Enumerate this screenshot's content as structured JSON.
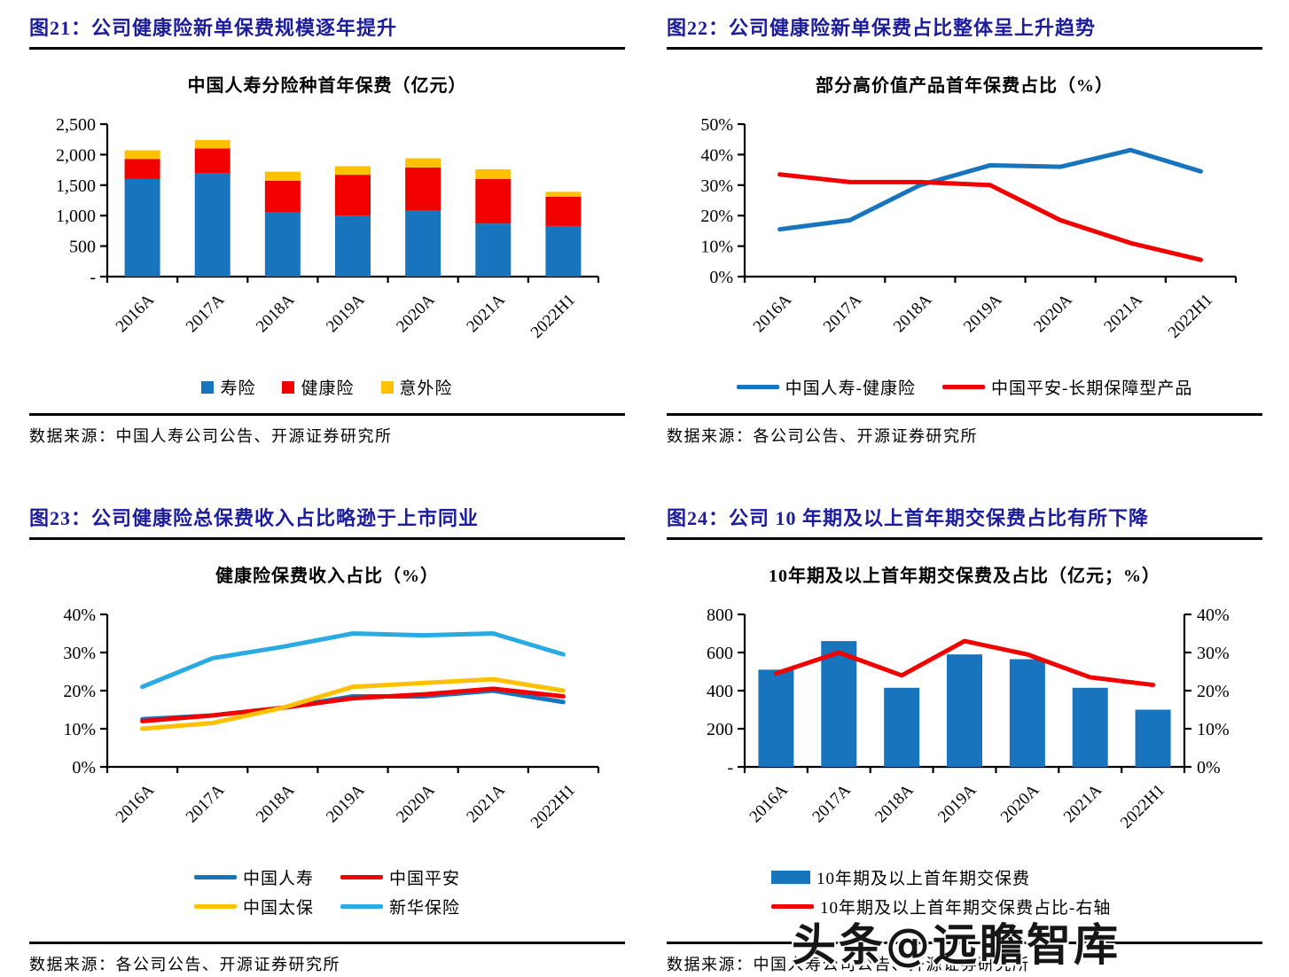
{
  "page": {
    "background": "#ffffff"
  },
  "watermark": {
    "text": "头条@远瞻智库"
  },
  "colors": {
    "title_blue": "#1c1c9c",
    "series_blue": "#1874bc",
    "series_red": "#f20000",
    "series_yellow": "#ffc000",
    "series_lightblue": "#29abe2"
  },
  "panels": [
    {
      "title": "图21：公司健康险新单保费规模逐年提升",
      "source": "数据来源：中国人寿公司公告、开源证券研究所"
    },
    {
      "title": "图22：公司健康险新单保费占比整体呈上升趋势",
      "source": "数据来源：各公司公告、开源证券研究所"
    },
    {
      "title": "图23：公司健康险总保费收入占比略逊于上市同业",
      "source": "数据来源：各公司公告、开源证券研究所"
    },
    {
      "title": "图24：公司 10 年期及以上首年期交保费占比有所下降",
      "source": "数据来源：中国人寿公司公告、开源证券研究所"
    }
  ],
  "chart_data": [
    {
      "type": "bar",
      "stacked": true,
      "title": "中国人寿分险种首年保费（亿元）",
      "categories": [
        "2016A",
        "2017A",
        "2018A",
        "2019A",
        "2020A",
        "2021A",
        "2022H1"
      ],
      "series": [
        {
          "name": "寿险",
          "color": "#1874bc",
          "marker": "square",
          "values": [
            1600,
            1690,
            1050,
            1000,
            1080,
            870,
            830
          ]
        },
        {
          "name": "健康险",
          "color": "#f20000",
          "marker": "square",
          "values": [
            330,
            410,
            520,
            670,
            710,
            730,
            480
          ]
        },
        {
          "name": "意外险",
          "color": "#ffc000",
          "marker": "square",
          "values": [
            140,
            140,
            150,
            140,
            150,
            160,
            80
          ]
        }
      ],
      "ylim": [
        0,
        2500
      ],
      "ytick_values": [
        0,
        500,
        1000,
        1500,
        2000,
        2500
      ],
      "ytick_labels": [
        "-",
        "500",
        "1,000",
        "1,500",
        "2,000",
        "2,500"
      ],
      "grid": false,
      "legend_rows": [
        [
          0,
          1,
          2
        ]
      ],
      "legend_align": "center"
    },
    {
      "type": "line",
      "title": "部分高价值产品首年保费占比（%）",
      "categories": [
        "2016A",
        "2017A",
        "2018A",
        "2019A",
        "2020A",
        "2021A",
        "2022H1"
      ],
      "series": [
        {
          "name": "中国人寿-健康险",
          "color": "#1874bc",
          "marker": "line",
          "values": [
            15.5,
            18.5,
            30,
            36.5,
            36,
            41.5,
            34.5
          ]
        },
        {
          "name": "中国平安-长期保障型产品",
          "color": "#f20000",
          "marker": "line",
          "values": [
            33.5,
            31,
            31,
            30,
            18.5,
            11,
            5.5
          ]
        }
      ],
      "ylim": [
        0,
        50
      ],
      "ytick_values": [
        0,
        10,
        20,
        30,
        40,
        50
      ],
      "ytick_labels": [
        "0%",
        "10%",
        "20%",
        "30%",
        "40%",
        "50%"
      ],
      "grid": false,
      "legend_rows": [
        [
          0,
          1
        ]
      ],
      "legend_align": "center"
    },
    {
      "type": "line",
      "title": "健康险保费收入占比（%）",
      "categories": [
        "2016A",
        "2017A",
        "2018A",
        "2019A",
        "2020A",
        "2021A",
        "2022H1"
      ],
      "series": [
        {
          "name": "中国人寿",
          "color": "#1874bc",
          "marker": "line",
          "values": [
            12.5,
            13.5,
            15.5,
            18.5,
            18.5,
            20,
            17
          ]
        },
        {
          "name": "中国平安",
          "color": "#f20000",
          "marker": "line",
          "values": [
            12,
            13.5,
            15.5,
            18,
            19,
            20.5,
            18.5
          ]
        },
        {
          "name": "中国太保",
          "color": "#ffc000",
          "marker": "line",
          "values": [
            10,
            11.5,
            15.5,
            21,
            22,
            23,
            20
          ]
        },
        {
          "name": "新华保险",
          "color": "#29abe2",
          "marker": "line",
          "values": [
            21,
            28.5,
            31.5,
            35,
            34.5,
            35,
            29.5
          ]
        }
      ],
      "ylim": [
        0,
        40
      ],
      "ytick_values": [
        0,
        10,
        20,
        30,
        40
      ],
      "ytick_labels": [
        "0%",
        "10%",
        "20%",
        "30%",
        "40%"
      ],
      "grid": false,
      "legend_rows": [
        [
          0,
          1
        ],
        [
          2,
          3
        ]
      ],
      "legend_align": "center"
    },
    {
      "type": "combo",
      "title": "10年期及以上首年期交保费及占比（亿元；%）",
      "categories": [
        "2016A",
        "2017A",
        "2018A",
        "2019A",
        "2020A",
        "2021A",
        "2022H1"
      ],
      "series": [
        {
          "name": "10年期及以上首年期交保费",
          "color": "#1874bc",
          "marker": "bar",
          "values": [
            510,
            660,
            415,
            590,
            565,
            415,
            300
          ]
        },
        {
          "name": "10年期及以上首年期交保费占比-右轴",
          "color": "#f20000",
          "marker": "line",
          "axis": "right",
          "values": [
            24.5,
            30,
            24,
            33,
            29.5,
            23.5,
            21.5
          ]
        }
      ],
      "ylim": [
        0,
        800
      ],
      "ytick_values": [
        0,
        200,
        400,
        600,
        800
      ],
      "ytick_labels": [
        "-",
        "200",
        "400",
        "600",
        "800"
      ],
      "right_axis": {
        "ylim": [
          0,
          40
        ],
        "tick_values": [
          0,
          10,
          20,
          30,
          40
        ],
        "tick_labels": [
          "0%",
          "10%",
          "20%",
          "30%",
          "40%"
        ]
      },
      "grid": false,
      "legend_rows": [
        [
          0
        ],
        [
          1
        ]
      ],
      "legend_align": "left"
    }
  ]
}
